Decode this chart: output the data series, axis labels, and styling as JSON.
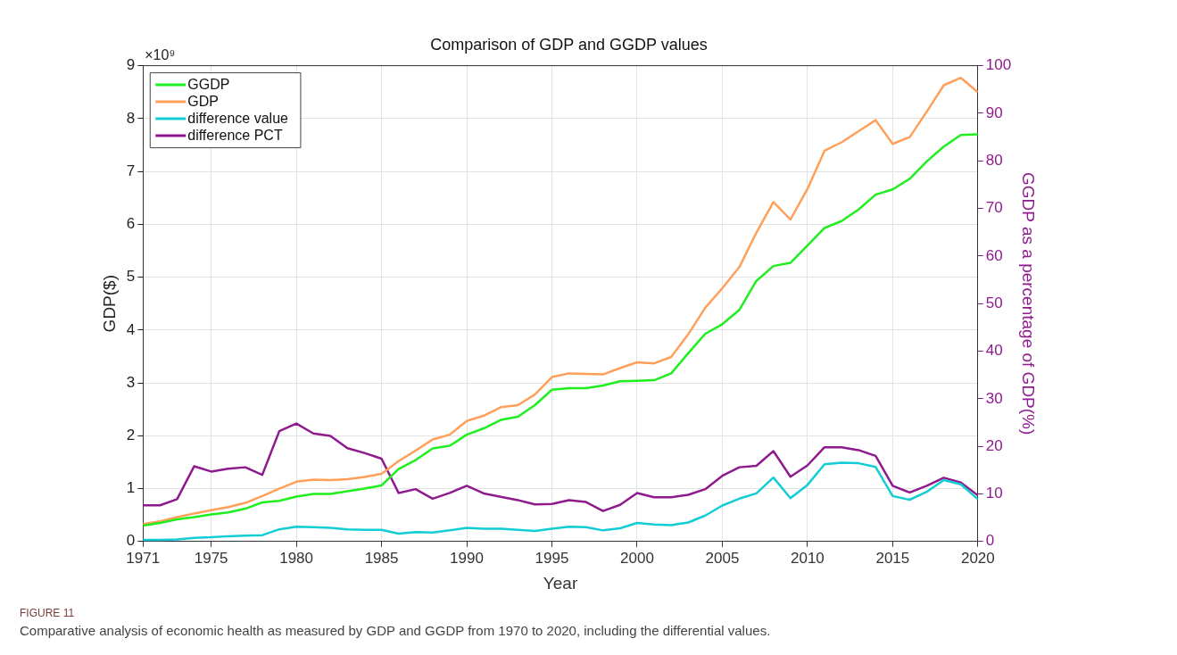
{
  "chart_data": {
    "type": "line",
    "title": "Comparison of GDP and GGDP values",
    "xlabel": "Year",
    "ylabel": "GDP($)",
    "y2label": "GGDP as a percentage of GDP(%)",
    "annotations": [
      "×10⁹",
      "FIGURE 11",
      "Comparative analysis of economic health as measured by GDP and GGDP from 1970 to 2020, including the differential values."
    ],
    "x": [
      1971,
      1972,
      1973,
      1974,
      1975,
      1976,
      1977,
      1978,
      1979,
      1980,
      1981,
      1982,
      1983,
      1984,
      1985,
      1986,
      1987,
      1988,
      1989,
      1990,
      1991,
      1992,
      1993,
      1994,
      1995,
      1996,
      1997,
      1998,
      1999,
      2000,
      2001,
      2002,
      2003,
      2004,
      2005,
      2006,
      2007,
      2008,
      2009,
      2010,
      2011,
      2012,
      2013,
      2014,
      2015,
      2016,
      2017,
      2018,
      2019,
      2020
    ],
    "series": [
      {
        "name": "GGDP",
        "color": "#1fee1f",
        "values": [
          0.3,
          0.35,
          0.42,
          0.46,
          0.51,
          0.55,
          0.62,
          0.74,
          0.77,
          0.85,
          0.9,
          0.9,
          0.95,
          1.0,
          1.06,
          1.37,
          1.54,
          1.76,
          1.81,
          2.02,
          2.14,
          2.3,
          2.36,
          2.58,
          2.87,
          2.9,
          2.9,
          2.95,
          3.03,
          3.04,
          3.05,
          3.18,
          3.56,
          3.93,
          4.11,
          4.38,
          4.93,
          5.21,
          5.27,
          5.6,
          5.93,
          6.06,
          6.28,
          6.56,
          6.66,
          6.86,
          7.19,
          7.47,
          7.69,
          7.7
        ]
      },
      {
        "name": "GDP",
        "color": "#ff9f5a",
        "values": [
          0.33,
          0.38,
          0.46,
          0.53,
          0.59,
          0.65,
          0.73,
          0.86,
          1.0,
          1.13,
          1.17,
          1.16,
          1.18,
          1.22,
          1.28,
          1.52,
          1.72,
          1.93,
          2.02,
          2.28,
          2.38,
          2.54,
          2.58,
          2.78,
          3.11,
          3.18,
          3.17,
          3.16,
          3.28,
          3.39,
          3.37,
          3.49,
          3.92,
          4.42,
          4.79,
          5.19,
          5.84,
          6.42,
          6.09,
          6.67,
          7.39,
          7.55,
          7.76,
          7.97,
          7.52,
          7.65,
          8.13,
          8.63,
          8.77,
          8.5
        ]
      },
      {
        "name": "difference value",
        "color": "#12cdd4",
        "values": [
          0.03,
          0.03,
          0.04,
          0.07,
          0.08,
          0.1,
          0.11,
          0.12,
          0.23,
          0.28,
          0.27,
          0.26,
          0.23,
          0.22,
          0.22,
          0.15,
          0.18,
          0.17,
          0.21,
          0.26,
          0.24,
          0.24,
          0.22,
          0.2,
          0.24,
          0.28,
          0.27,
          0.21,
          0.25,
          0.35,
          0.32,
          0.31,
          0.36,
          0.49,
          0.68,
          0.81,
          0.91,
          1.21,
          0.82,
          1.07,
          1.46,
          1.49,
          1.48,
          1.41,
          0.86,
          0.79,
          0.94,
          1.16,
          1.08,
          0.8
        ]
      },
      {
        "name": "difference PCT",
        "color": "#8e1a8e",
        "axis": "y2",
        "values": [
          7.6,
          7.6,
          8.9,
          15.8,
          14.7,
          15.3,
          15.6,
          14,
          23.2,
          24.8,
          22.7,
          22.2,
          19.6,
          18.6,
          17.4,
          10.2,
          11,
          9,
          10.2,
          11.7,
          10.1,
          9.4,
          8.7,
          7.8,
          7.9,
          8.7,
          8.3,
          6.4,
          7.7,
          10.2,
          9.3,
          9.3,
          9.8,
          11,
          13.8,
          15.6,
          15.9,
          19,
          13.6,
          16,
          19.8,
          19.8,
          19.2,
          18,
          11.7,
          10.3,
          11.7,
          13.4,
          12.4,
          9.7
        ]
      }
    ],
    "xlim": [
      1971,
      2020
    ],
    "xticks": [
      1971,
      1975,
      1980,
      1985,
      1990,
      1995,
      2000,
      2005,
      2010,
      2015,
      2020
    ],
    "ylim": [
      0,
      9
    ],
    "yticks": [
      0,
      1,
      2,
      3,
      4,
      5,
      6,
      7,
      8,
      9
    ],
    "y2lim": [
      0,
      100
    ],
    "y2ticks": [
      0,
      10,
      20,
      30,
      40,
      50,
      60,
      70,
      80,
      90,
      100
    ],
    "grid": true,
    "legend": "top left",
    "marker": "none",
    "line_style": "solid"
  }
}
